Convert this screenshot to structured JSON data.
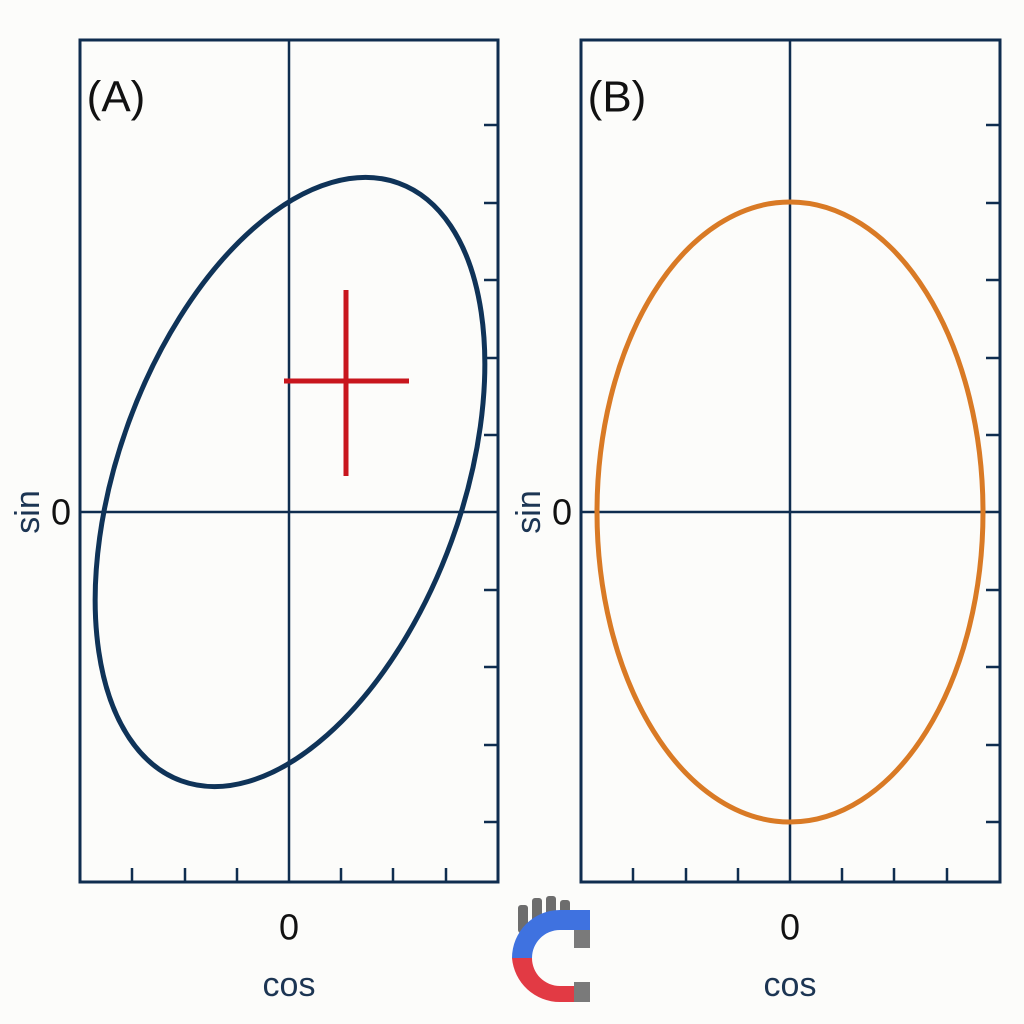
{
  "panels": [
    {
      "label": "(A)",
      "x_axis_label": "cos",
      "y_axis_label": "sin",
      "x_origin_label": "0",
      "y_origin_label": "0"
    },
    {
      "label": "(B)",
      "x_axis_label": "cos",
      "y_axis_label": "sin",
      "x_origin_label": "0",
      "y_origin_label": "0"
    }
  ]
}
